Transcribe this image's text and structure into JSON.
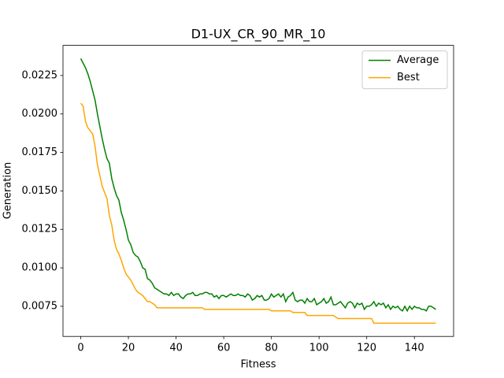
{
  "chart_data": {
    "type": "line",
    "title": "D1-UX_CR_90_MR_10",
    "x_label": "Fitness",
    "y_label": "Generation",
    "x": [
      0,
      1,
      2,
      3,
      4,
      5,
      6,
      7,
      8,
      9,
      10,
      11,
      12,
      13,
      14,
      15,
      16,
      17,
      18,
      19,
      20,
      21,
      22,
      23,
      24,
      25,
      26,
      27,
      28,
      29,
      30,
      31,
      32,
      33,
      34,
      35,
      36,
      37,
      38,
      39,
      40,
      41,
      42,
      43,
      44,
      45,
      46,
      47,
      48,
      49,
      50,
      51,
      52,
      53,
      54,
      55,
      56,
      57,
      58,
      59,
      60,
      61,
      62,
      63,
      64,
      65,
      66,
      67,
      68,
      69,
      70,
      71,
      72,
      73,
      74,
      75,
      76,
      77,
      78,
      79,
      80,
      81,
      82,
      83,
      84,
      85,
      86,
      87,
      88,
      89,
      90,
      91,
      92,
      93,
      94,
      95,
      96,
      97,
      98,
      99,
      100,
      101,
      102,
      103,
      104,
      105,
      106,
      107,
      108,
      109,
      110,
      111,
      112,
      113,
      114,
      115,
      116,
      117,
      118,
      119,
      120,
      121,
      122,
      123,
      124,
      125,
      126,
      127,
      128,
      129,
      130,
      131,
      132,
      133,
      134,
      135,
      136,
      137,
      138,
      139,
      140,
      141,
      142,
      143,
      144,
      145,
      146,
      147,
      148,
      149
    ],
    "series": [
      {
        "name": "Average",
        "color": "#008000",
        "values": [
          0.0236,
          0.0233,
          0.023,
          0.0226,
          0.0221,
          0.0215,
          0.0209,
          0.02,
          0.0192,
          0.0184,
          0.0177,
          0.0171,
          0.0168,
          0.0158,
          0.0152,
          0.0147,
          0.0144,
          0.0136,
          0.0131,
          0.0125,
          0.0118,
          0.0115,
          0.011,
          0.0108,
          0.0107,
          0.0104,
          0.01,
          0.0099,
          0.0093,
          0.0092,
          0.009,
          0.0087,
          0.0086,
          0.0085,
          0.0084,
          0.0083,
          0.0083,
          0.0082,
          0.0084,
          0.0082,
          0.0083,
          0.0083,
          0.0081,
          0.008,
          0.0082,
          0.0083,
          0.0083,
          0.0084,
          0.0082,
          0.0082,
          0.0083,
          0.0083,
          0.0084,
          0.0084,
          0.0083,
          0.0083,
          0.0081,
          0.0082,
          0.008,
          0.0082,
          0.0082,
          0.0081,
          0.0082,
          0.0083,
          0.0082,
          0.0082,
          0.0083,
          0.0082,
          0.0082,
          0.0081,
          0.0083,
          0.0082,
          0.0079,
          0.008,
          0.0082,
          0.0081,
          0.0082,
          0.0079,
          0.0079,
          0.008,
          0.0083,
          0.0081,
          0.0082,
          0.0083,
          0.0081,
          0.0083,
          0.0078,
          0.0081,
          0.0082,
          0.0084,
          0.0079,
          0.0078,
          0.0079,
          0.0079,
          0.0077,
          0.008,
          0.0078,
          0.0078,
          0.008,
          0.0076,
          0.0077,
          0.0078,
          0.008,
          0.0077,
          0.0078,
          0.0081,
          0.0076,
          0.0076,
          0.0077,
          0.0078,
          0.0076,
          0.0074,
          0.0077,
          0.0078,
          0.0077,
          0.0074,
          0.0077,
          0.0076,
          0.0077,
          0.0073,
          0.0075,
          0.0075,
          0.0076,
          0.0078,
          0.0075,
          0.0077,
          0.0076,
          0.0077,
          0.0074,
          0.0076,
          0.0073,
          0.0075,
          0.0074,
          0.0075,
          0.0073,
          0.0072,
          0.0075,
          0.0072,
          0.0075,
          0.0073,
          0.0075,
          0.0074,
          0.0074,
          0.0073,
          0.0073,
          0.0072,
          0.0075,
          0.0075,
          0.0074,
          0.0073
        ]
      },
      {
        "name": "Best",
        "color": "#ffa500",
        "values": [
          0.0207,
          0.0205,
          0.0195,
          0.0191,
          0.0189,
          0.0187,
          0.0179,
          0.0167,
          0.016,
          0.0153,
          0.0149,
          0.0145,
          0.0134,
          0.0128,
          0.0118,
          0.0112,
          0.0109,
          0.0105,
          0.01,
          0.0096,
          0.0094,
          0.0092,
          0.0089,
          0.0086,
          0.0084,
          0.0083,
          0.0082,
          0.008,
          0.0078,
          0.0078,
          0.0077,
          0.0076,
          0.0074,
          0.0074,
          0.0074,
          0.0074,
          0.0074,
          0.0074,
          0.0074,
          0.0074,
          0.0074,
          0.0074,
          0.0074,
          0.0074,
          0.0074,
          0.0074,
          0.0074,
          0.0074,
          0.0074,
          0.0074,
          0.0074,
          0.0074,
          0.0073,
          0.0073,
          0.0073,
          0.0073,
          0.0073,
          0.0073,
          0.0073,
          0.0073,
          0.0073,
          0.0073,
          0.0073,
          0.0073,
          0.0073,
          0.0073,
          0.0073,
          0.0073,
          0.0073,
          0.0073,
          0.0073,
          0.0073,
          0.0073,
          0.0073,
          0.0073,
          0.0073,
          0.0073,
          0.0073,
          0.0073,
          0.0073,
          0.0072,
          0.0072,
          0.0072,
          0.0072,
          0.0072,
          0.0072,
          0.0072,
          0.0072,
          0.0072,
          0.0071,
          0.0071,
          0.0071,
          0.0071,
          0.0071,
          0.0071,
          0.0069,
          0.0069,
          0.0069,
          0.0069,
          0.0069,
          0.0069,
          0.0069,
          0.0069,
          0.0069,
          0.0069,
          0.0069,
          0.0069,
          0.0068,
          0.0067,
          0.0067,
          0.0067,
          0.0067,
          0.0067,
          0.0067,
          0.0067,
          0.0067,
          0.0067,
          0.0067,
          0.0067,
          0.0067,
          0.0067,
          0.0067,
          0.0067,
          0.0064,
          0.0064,
          0.0064,
          0.0064,
          0.0064,
          0.0064,
          0.0064,
          0.0064,
          0.0064,
          0.0064,
          0.0064,
          0.0064,
          0.0064,
          0.0064,
          0.0064,
          0.0064,
          0.0064,
          0.0064,
          0.0064,
          0.0064,
          0.0064,
          0.0064,
          0.0064,
          0.0064,
          0.0064,
          0.0064,
          0.0064
        ]
      }
    ],
    "xlim": [
      -7.45,
      156.45
    ],
    "xticks": [
      0,
      20,
      40,
      60,
      80,
      100,
      120,
      140
    ],
    "ylim": [
      0.00554,
      0.02446
    ],
    "yticks": [
      0.0075,
      {
        "value": 0.01,
        "label": "0.0100"
      },
      0.0125,
      {
        "value": 0.015,
        "label": "0.0150"
      },
      0.0175,
      {
        "value": 0.02,
        "label": "0.0200"
      },
      0.0225
    ],
    "legend": "upper right"
  }
}
